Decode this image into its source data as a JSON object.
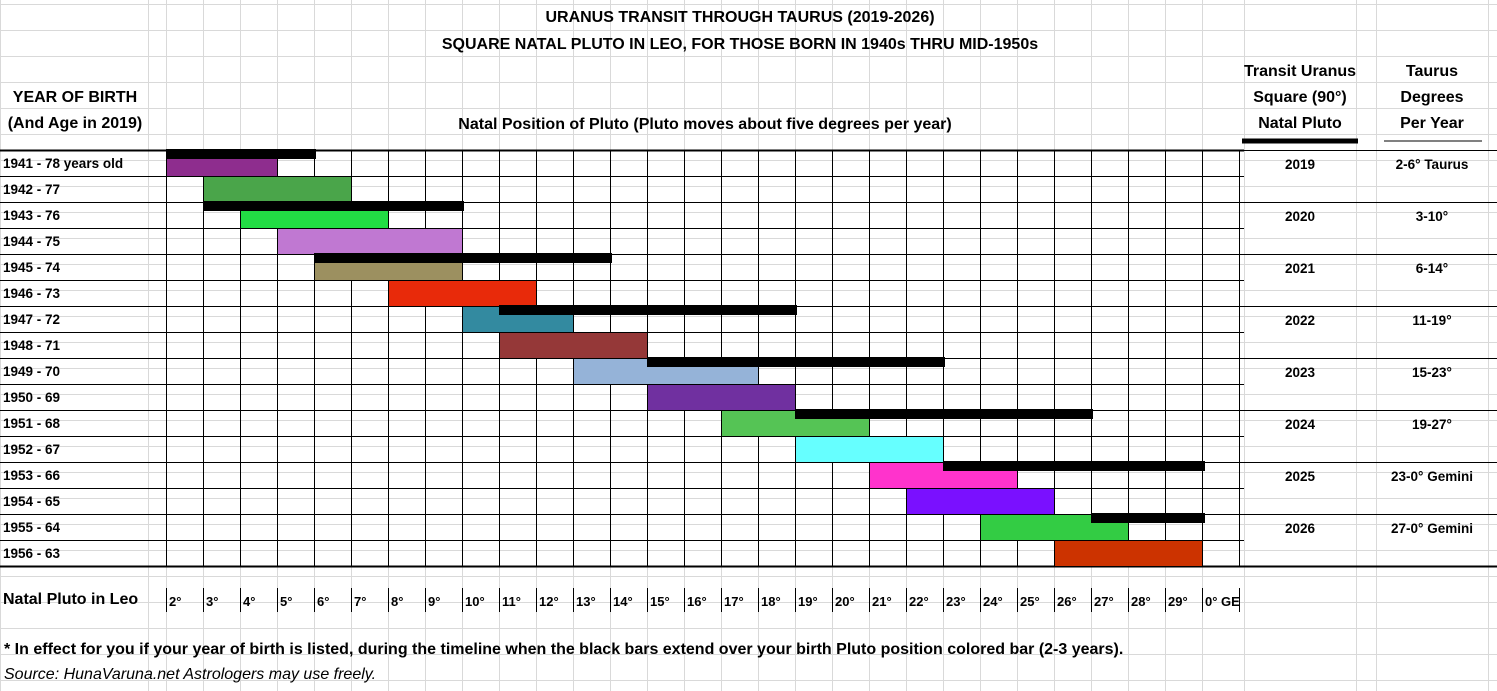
{
  "title_lines": [
    "URANUS TRANSIT THROUGH TAURUS (2019-2026)",
    "SQUARE NATAL PLUTO IN LEO, FOR THOSE BORN IN 1940s THRU MID-1950s"
  ],
  "headers": {
    "year_of_birth": [
      "YEAR OF BIRTH",
      "(And Age in 2019)"
    ],
    "natal_position": "Natal Position of Pluto (Pluto moves about five degrees per year)",
    "transit_uranus": [
      "Transit Uranus",
      "Square (90°)",
      "Natal Pluto"
    ],
    "taurus_degrees": [
      "Taurus",
      "Degrees",
      "Per Year"
    ]
  },
  "footer_row_label": "Natal Pluto in Leo",
  "footnote": "* In effect for you if your year of birth is listed, during the timeline when the black bars extend over your birth Pluto position colored bar (2-3 years).",
  "source": "Source:  HunaVaruna.net  Astrologers may use freely.",
  "chart_data": {
    "type": "gantt",
    "degree_labels": [
      "2°",
      "3°",
      "4°",
      "5°",
      "6°",
      "7°",
      "8°",
      "9°",
      "10°",
      "11°",
      "12°",
      "13°",
      "14°",
      "15°",
      "16°",
      "17°",
      "18°",
      "19°",
      "20°",
      "21°",
      "22°",
      "23°",
      "24°",
      "25°",
      "26°",
      "27°",
      "28°",
      "29°",
      "0° GE"
    ],
    "birth_rows": [
      {
        "label": "1941 - 78 years old",
        "start": 2,
        "end": 5,
        "color": "#8e2d8e"
      },
      {
        "label": "1942 - 77",
        "start": 3,
        "end": 7,
        "color": "#4aa54a"
      },
      {
        "label": "1943 - 76",
        "start": 4,
        "end": 8,
        "color": "#22dd44"
      },
      {
        "label": "1944 - 75",
        "start": 5,
        "end": 10,
        "color": "#c078d2"
      },
      {
        "label": "1945 - 74",
        "start": 6,
        "end": 10,
        "color": "#9c9060"
      },
      {
        "label": "1946 - 73",
        "start": 8,
        "end": 12,
        "color": "#e82a0a"
      },
      {
        "label": "1947 - 72",
        "start": 10,
        "end": 13,
        "color": "#338aa0"
      },
      {
        "label": "1948 - 71",
        "start": 11,
        "end": 15,
        "color": "#953838"
      },
      {
        "label": "1949 - 70",
        "start": 13,
        "end": 18,
        "color": "#95b3d8"
      },
      {
        "label": "1950 - 69",
        "start": 15,
        "end": 19,
        "color": "#7030a0"
      },
      {
        "label": "1951 - 68",
        "start": 17,
        "end": 21,
        "color": "#55c455"
      },
      {
        "label": "1952 - 67",
        "start": 19,
        "end": 23,
        "color": "#66ffff"
      },
      {
        "label": "1953 - 66",
        "start": 21,
        "end": 25,
        "color": "#ff33cc"
      },
      {
        "label": "1954 - 65",
        "start": 22,
        "end": 26,
        "color": "#7a10ff"
      },
      {
        "label": "1955 - 64",
        "start": 24,
        "end": 28,
        "color": "#33cc44"
      },
      {
        "label": "1956 - 63",
        "start": 26,
        "end": 30,
        "color": "#cc3300"
      }
    ],
    "transits": [
      {
        "year": "2019",
        "taurus_degrees": "2-6° Taurus",
        "start": 2,
        "end": 6
      },
      {
        "year": "2020",
        "taurus_degrees": "3-10°",
        "start": 3,
        "end": 10
      },
      {
        "year": "2021",
        "taurus_degrees": "6-14°",
        "start": 6,
        "end": 14
      },
      {
        "year": "2022",
        "taurus_degrees": "11-19°",
        "start": 11,
        "end": 19
      },
      {
        "year": "2023",
        "taurus_degrees": "15-23°",
        "start": 15,
        "end": 23
      },
      {
        "year": "2024",
        "taurus_degrees": "19-27°",
        "start": 19,
        "end": 27
      },
      {
        "year": "2025",
        "taurus_degrees": "23-0° Gemini",
        "start": 23,
        "end": 30
      },
      {
        "year": "2026",
        "taurus_degrees": "27-0° Gemini",
        "start": 27,
        "end": 30
      }
    ],
    "transit_color": "#000000"
  }
}
